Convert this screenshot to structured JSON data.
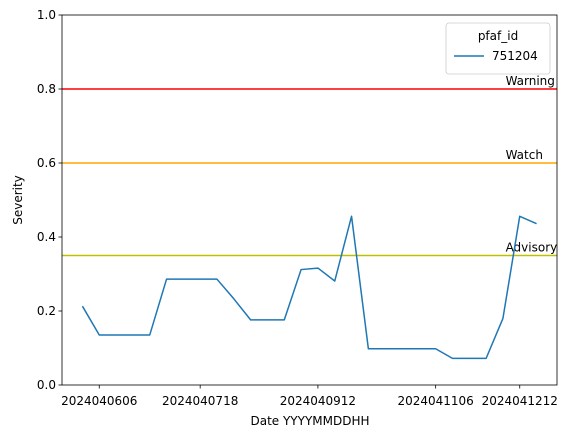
{
  "chart_data": {
    "type": "line",
    "xlabel": "Date YYYYMMDDHH",
    "ylabel": "Severity",
    "ylim": [
      0,
      1.0
    ],
    "y_ticks": [
      "0.0",
      "0.2",
      "0.4",
      "0.6",
      "0.8",
      "1.0"
    ],
    "x_ticks": [
      "2024040606",
      "2024040718",
      "2024040912",
      "2024041106",
      "2024041212"
    ],
    "grid": false,
    "legend": {
      "title": "pfaf_id",
      "placement": "top-right"
    },
    "series": [
      {
        "name": "751204",
        "color": "#1f77b4",
        "points": [
          {
            "x": "2024040600",
            "y": 0.213
          },
          {
            "x": "2024040606",
            "y": 0.135
          },
          {
            "x": "2024040612",
            "y": 0.135
          },
          {
            "x": "2024040618",
            "y": 0.135
          },
          {
            "x": "2024040700",
            "y": 0.135
          },
          {
            "x": "2024040706",
            "y": 0.286
          },
          {
            "x": "2024040712",
            "y": 0.286
          },
          {
            "x": "2024040718",
            "y": 0.286
          },
          {
            "x": "2024040800",
            "y": 0.286
          },
          {
            "x": "2024040806",
            "y": 0.233
          },
          {
            "x": "2024040812",
            "y": 0.176
          },
          {
            "x": "2024040818",
            "y": 0.176
          },
          {
            "x": "2024040900",
            "y": 0.176
          },
          {
            "x": "2024040906",
            "y": 0.312
          },
          {
            "x": "2024040912",
            "y": 0.316
          },
          {
            "x": "2024040918",
            "y": 0.281
          },
          {
            "x": "2024041000",
            "y": 0.456
          },
          {
            "x": "2024041006",
            "y": 0.098
          },
          {
            "x": "2024041012",
            "y": 0.098
          },
          {
            "x": "2024041018",
            "y": 0.098
          },
          {
            "x": "2024041100",
            "y": 0.098
          },
          {
            "x": "2024041106",
            "y": 0.098
          },
          {
            "x": "2024041112",
            "y": 0.072
          },
          {
            "x": "2024041118",
            "y": 0.072
          },
          {
            "x": "2024041200",
            "y": 0.072
          },
          {
            "x": "2024041206",
            "y": 0.18
          },
          {
            "x": "2024041212",
            "y": 0.456
          },
          {
            "x": "2024041218",
            "y": 0.436
          }
        ]
      }
    ],
    "thresholds": [
      {
        "label": "Warning",
        "value": 0.8,
        "color": "#ff0000"
      },
      {
        "label": "Watch",
        "value": 0.6,
        "color": "#ffa500"
      },
      {
        "label": "Advisory",
        "value": 0.35,
        "color": "#bfbf00"
      }
    ]
  }
}
